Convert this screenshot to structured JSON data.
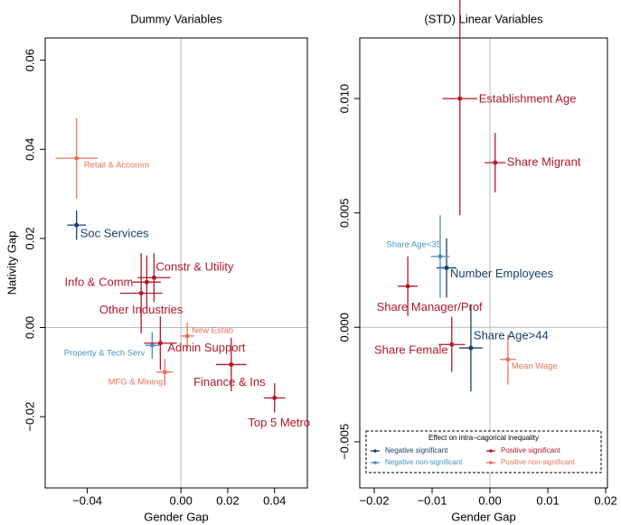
{
  "chart_data": [
    {
      "type": "scatter",
      "title": "Dummy Variables",
      "x_label": "Gender Gap",
      "y_label": "Nativity Gap",
      "xlim": [
        -0.058,
        0.054
      ],
      "ylim": [
        -0.036,
        0.065
      ],
      "xticks": [
        {
          "value": -0.04,
          "label": "−0.04"
        },
        {
          "value": 0,
          "label": "0.00"
        },
        0.02,
        0.04
      ],
      "yticks": [
        {
          "value": -0.02,
          "label": "−0.02"
        },
        {
          "value": 0,
          "label": "0.00"
        },
        0.02,
        0.04,
        0.06
      ],
      "series": [
        {
          "color": "#173f6e",
          "labels": [
            "Soc Services"
          ],
          "x": [
            -0.0446
          ],
          "y": [
            0.023
          ],
          "xerr": [
            0.004
          ],
          "yerr": [
            0.0033
          ]
        },
        {
          "color": "#4393c3",
          "labels": [
            "Property & Tech Serv"
          ],
          "x": [
            -0.0123
          ],
          "y": [
            -0.004
          ],
          "xerr": [
            0.003
          ],
          "yerr": [
            0.003
          ]
        },
        {
          "color": "#e8735a",
          "labels": [
            "Retail & Accomm",
            "New Estab",
            "MFG & Mining"
          ],
          "x": [
            -0.0446,
            0.0027,
            -0.0069
          ],
          "y": [
            0.038,
            -0.0019,
            -0.01
          ],
          "xerr": [
            0.009,
            0.003,
            0.0035
          ],
          "yerr": [
            0.009,
            0.003,
            0.003
          ]
        },
        {
          "color": "#b2182b",
          "labels": [
            "Constr & Utility",
            "Info & Comm",
            "Other Industries",
            "Admin Support",
            "Finance & Ins",
            "Top 5 Metro"
          ],
          "x": [
            -0.0115,
            -0.0146,
            -0.017,
            -0.0088,
            0.0215,
            0.04
          ],
          "y": [
            0.0112,
            0.0102,
            0.0077,
            -0.0035,
            -0.0083,
            -0.0158
          ],
          "xerr": [
            0.007,
            0.006,
            0.009,
            0.007,
            0.0065,
            0.0046
          ],
          "yerr": [
            0.0055,
            0.006,
            0.009,
            0.006,
            0.006,
            0.0033
          ]
        }
      ]
    },
    {
      "type": "scatter",
      "title": "(STD) Linear Variables",
      "x_label": "Gender Gap",
      "xlim": [
        -0.0225,
        0.0203
      ],
      "ylim": [
        -0.00702,
        0.01265
      ],
      "xticks": [
        {
          "value": -0.02,
          "label": "−0.02"
        },
        {
          "value": -0.01,
          "label": "−0.01"
        },
        {
          "value": 0,
          "label": "0.00"
        },
        0.01,
        0.02
      ],
      "yticks": [
        {
          "value": -0.005,
          "label": "−0.005"
        },
        {
          "value": 0,
          "label": "0.000"
        },
        0.005,
        {
          "value": 0.01,
          "label": "0.010"
        }
      ],
      "legend_title": "Effect on intra−cagorical inequality",
      "legend_position": "bottom",
      "series": [
        {
          "name": "Negative significant",
          "color": "#173f6e",
          "labels": [
            "Number Employees",
            "Share Age>44"
          ],
          "x": [
            -0.0075,
            -0.0033
          ],
          "y": [
            0.0026,
            -0.0009
          ],
          "xerr": [
            0.0017,
            0.002
          ],
          "yerr": [
            0.0013,
            0.0019
          ]
        },
        {
          "name": "Negative non-significant",
          "color": "#4393c3",
          "labels": [
            "Share Age<35"
          ],
          "x": [
            -0.0086
          ],
          "y": [
            0.0031
          ],
          "xerr": [
            0.0016
          ],
          "yerr": [
            0.0018
          ]
        },
        {
          "name": "Positive non-significant",
          "color": "#e8735a",
          "labels": [
            "Mean Wage"
          ],
          "x": [
            0.0031
          ],
          "y": [
            -0.0014
          ],
          "xerr": [
            0.0014
          ],
          "yerr": [
            0.0011
          ]
        },
        {
          "name": "Positive significant",
          "color": "#b2182b",
          "labels": [
            "Establishment Age",
            "Share Migrant",
            "Share Manager/Prof",
            "Share Female"
          ],
          "x": [
            -0.0052,
            0.0009,
            -0.0142,
            -0.0066
          ],
          "y": [
            0.01,
            0.0072,
            0.0018,
            -0.00075
          ],
          "xerr": [
            0.003,
            0.0018,
            0.0017,
            0.0023
          ],
          "yerr": [
            0.0051,
            0.0013,
            0.0013,
            0.0012
          ]
        }
      ]
    }
  ]
}
